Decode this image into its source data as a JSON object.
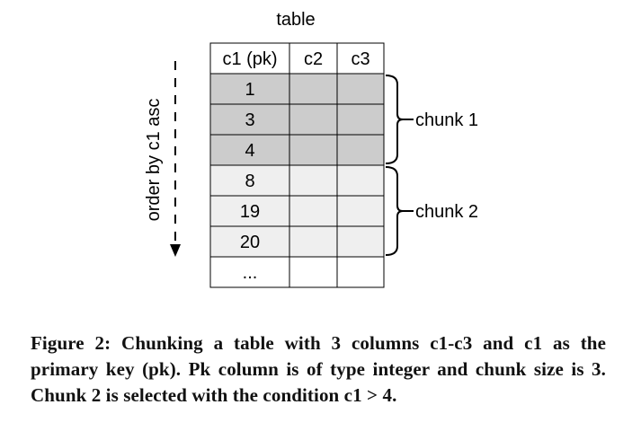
{
  "figure": {
    "table_title": "table",
    "axis_label": "order by c1 asc",
    "columns": [
      "c1 (pk)",
      "c2",
      "c3"
    ],
    "rows": [
      {
        "c1": "1",
        "chunk": 1
      },
      {
        "c1": "3",
        "chunk": 1
      },
      {
        "c1": "4",
        "chunk": 1
      },
      {
        "c1": "8",
        "chunk": 2
      },
      {
        "c1": "19",
        "chunk": 2
      },
      {
        "c1": "20",
        "chunk": 2
      },
      {
        "c1": "...",
        "chunk": 0
      }
    ],
    "chunks": [
      {
        "label": "chunk 1"
      },
      {
        "label": "chunk 2"
      }
    ],
    "colors": {
      "chunk1_fill": "#cccccc",
      "chunk2_fill": "#efefef",
      "empty_fill": "#ffffff",
      "line": "#000000"
    }
  },
  "caption": {
    "text": "Figure 2: Chunking a table with 3 columns c1-c3 and c1 as the primary key (pk). Pk column is of type integer and chunk size is 3. Chunk 2 is selected with the condition c1 > 4."
  }
}
